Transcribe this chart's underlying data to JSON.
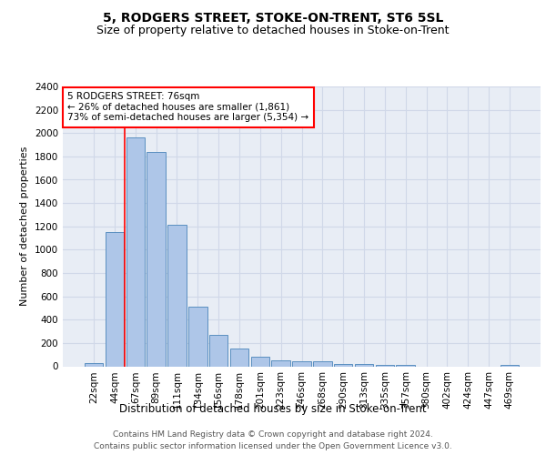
{
  "title": "5, RODGERS STREET, STOKE-ON-TRENT, ST6 5SL",
  "subtitle": "Size of property relative to detached houses in Stoke-on-Trent",
  "xlabel": "Distribution of detached houses by size in Stoke-on-Trent",
  "ylabel": "Number of detached properties",
  "categories": [
    "22sqm",
    "44sqm",
    "67sqm",
    "89sqm",
    "111sqm",
    "134sqm",
    "156sqm",
    "178sqm",
    "201sqm",
    "223sqm",
    "246sqm",
    "268sqm",
    "290sqm",
    "313sqm",
    "335sqm",
    "357sqm",
    "380sqm",
    "402sqm",
    "424sqm",
    "447sqm",
    "469sqm"
  ],
  "values": [
    30,
    1150,
    1960,
    1840,
    1210,
    510,
    270,
    155,
    80,
    50,
    45,
    40,
    20,
    20,
    10,
    15,
    0,
    0,
    0,
    0,
    15
  ],
  "bar_color": "#aec6e8",
  "bar_edge_color": "#5a8fc0",
  "grid_color": "#d0d8e8",
  "background_color": "#e8edf5",
  "annotation_line1": "5 RODGERS STREET: 76sqm",
  "annotation_line2": "← 26% of detached houses are smaller (1,861)",
  "annotation_line3": "73% of semi-detached houses are larger (5,354) →",
  "annotation_box_color": "white",
  "annotation_box_edge_color": "red",
  "marker_bin_index": 2,
  "ylim": [
    0,
    2400
  ],
  "yticks": [
    0,
    200,
    400,
    600,
    800,
    1000,
    1200,
    1400,
    1600,
    1800,
    2000,
    2200,
    2400
  ],
  "footer_line1": "Contains HM Land Registry data © Crown copyright and database right 2024.",
  "footer_line2": "Contains public sector information licensed under the Open Government Licence v3.0.",
  "title_fontsize": 10,
  "subtitle_fontsize": 9,
  "xlabel_fontsize": 8.5,
  "ylabel_fontsize": 8,
  "tick_fontsize": 7.5,
  "annotation_fontsize": 7.5,
  "footer_fontsize": 6.5
}
